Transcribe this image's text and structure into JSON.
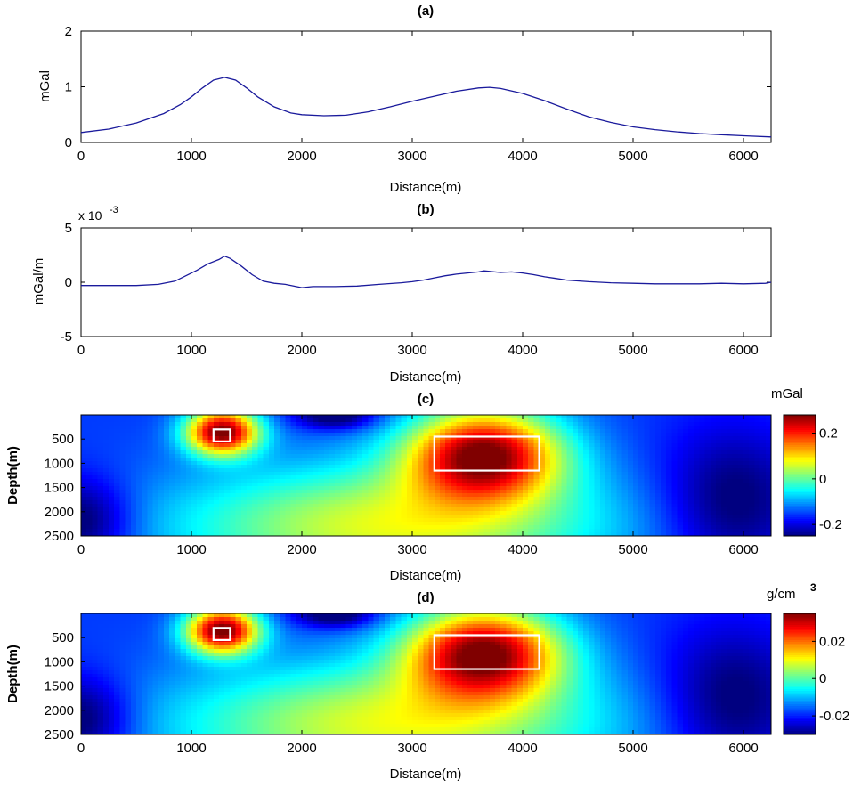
{
  "figure": {
    "background": "#ffffff",
    "axis_color": "#000000",
    "line_color": "#1a1a9c",
    "box_color": "#ffffff"
  },
  "chart_data": [
    {
      "panel": "a",
      "type": "line",
      "title": "(a)",
      "xlabel": "Distance(m)",
      "ylabel": "mGal",
      "xlim": [
        0,
        6250
      ],
      "ylim": [
        0,
        2
      ],
      "xticks": [
        "0",
        "1000",
        "2000",
        "3000",
        "4000",
        "5000",
        "6000"
      ],
      "yticks": [
        "0",
        "1",
        "2"
      ],
      "grid": false,
      "series": [
        {
          "x": [
            0,
            250,
            500,
            750,
            900,
            1000,
            1100,
            1200,
            1300,
            1400,
            1500,
            1600,
            1750,
            1900,
            2000,
            2200,
            2400,
            2600,
            2800,
            3000,
            3200,
            3400,
            3600,
            3700,
            3800,
            4000,
            4200,
            4400,
            4600,
            4800,
            5000,
            5200,
            5400,
            5600,
            5800,
            6000,
            6250
          ],
          "y": [
            0.18,
            0.24,
            0.35,
            0.52,
            0.68,
            0.82,
            0.98,
            1.12,
            1.17,
            1.12,
            0.98,
            0.82,
            0.64,
            0.53,
            0.5,
            0.48,
            0.49,
            0.55,
            0.64,
            0.74,
            0.83,
            0.92,
            0.98,
            0.99,
            0.97,
            0.88,
            0.75,
            0.6,
            0.46,
            0.36,
            0.28,
            0.23,
            0.19,
            0.16,
            0.14,
            0.12,
            0.1
          ]
        }
      ]
    },
    {
      "panel": "b",
      "type": "line",
      "title": "(b)",
      "xlabel": "Distance(m)",
      "ylabel": "mGal/m",
      "y_multiplier": "x 10",
      "y_multiplier_exp": "-3",
      "xlim": [
        0,
        6250
      ],
      "ylim": [
        -5,
        5
      ],
      "xticks": [
        "0",
        "1000",
        "2000",
        "3000",
        "4000",
        "5000",
        "6000"
      ],
      "yticks": [
        "-5",
        "0",
        "5"
      ],
      "grid": false,
      "series": [
        {
          "x": [
            0,
            250,
            500,
            700,
            850,
            950,
            1050,
            1150,
            1250,
            1300,
            1350,
            1450,
            1550,
            1650,
            1750,
            1850,
            1950,
            2000,
            2100,
            2300,
            2500,
            2700,
            2900,
            3000,
            3100,
            3200,
            3300,
            3400,
            3500,
            3600,
            3650,
            3700,
            3800,
            3900,
            4000,
            4100,
            4200,
            4300,
            4400,
            4600,
            4800,
            5000,
            5200,
            5400,
            5600,
            5800,
            6000,
            6200,
            6250
          ],
          "y": [
            -0.3,
            -0.3,
            -0.3,
            -0.2,
            0.1,
            0.6,
            1.1,
            1.7,
            2.1,
            2.4,
            2.2,
            1.5,
            0.7,
            0.1,
            -0.1,
            -0.2,
            -0.4,
            -0.5,
            -0.4,
            -0.4,
            -0.35,
            -0.2,
            -0.05,
            0.05,
            0.2,
            0.4,
            0.6,
            0.75,
            0.85,
            0.95,
            1.05,
            1.0,
            0.9,
            0.95,
            0.85,
            0.7,
            0.5,
            0.35,
            0.2,
            0.05,
            -0.05,
            -0.1,
            -0.15,
            -0.15,
            -0.15,
            -0.1,
            -0.15,
            -0.1,
            0.0
          ]
        }
      ]
    },
    {
      "panel": "c",
      "type": "heatmap",
      "title": "(c)",
      "xlabel": "Distance(m)",
      "ylabel": "Depth(m)",
      "xlim": [
        0,
        6250
      ],
      "ylim": [
        2500,
        0
      ],
      "xticks": [
        "0",
        "1000",
        "2000",
        "3000",
        "4000",
        "5000",
        "6000"
      ],
      "yticks": [
        "500",
        "1000",
        "1500",
        "2000",
        "2500"
      ],
      "colorbar_label": "mGal",
      "colorbar_ticks": [
        "0.2",
        "0",
        "-0.2"
      ],
      "clim": [
        -0.25,
        0.28
      ],
      "boxes": [
        {
          "x": [
            1200,
            1350
          ],
          "y": [
            300,
            550
          ]
        },
        {
          "x": [
            3200,
            4150
          ],
          "y": [
            450,
            1150
          ]
        }
      ]
    },
    {
      "panel": "d",
      "type": "heatmap",
      "title": "(d)",
      "xlabel": "Distance(m)",
      "ylabel": "Depth(m)",
      "xlim": [
        0,
        6250
      ],
      "ylim": [
        2500,
        0
      ],
      "xticks": [
        "0",
        "1000",
        "2000",
        "3000",
        "4000",
        "5000",
        "6000"
      ],
      "yticks": [
        "500",
        "1000",
        "1500",
        "2000",
        "2500"
      ],
      "colorbar_label": "g/cm",
      "colorbar_label_exp": "3",
      "colorbar_ticks": [
        "0.02",
        "0",
        "-0.02"
      ],
      "clim": [
        -0.03,
        0.035
      ],
      "boxes": [
        {
          "x": [
            1200,
            1350
          ],
          "y": [
            300,
            550
          ]
        },
        {
          "x": [
            3200,
            4150
          ],
          "y": [
            450,
            1150
          ]
        }
      ]
    }
  ]
}
